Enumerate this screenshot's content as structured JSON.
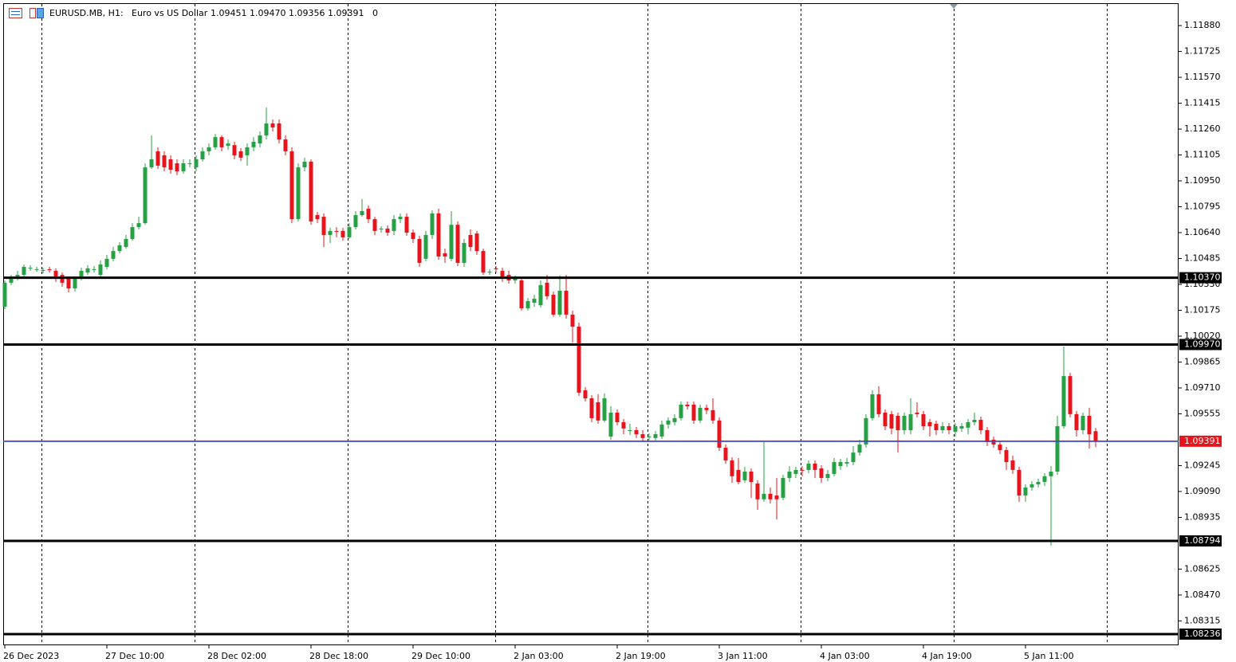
{
  "header": {
    "symbol": "EURUSD.MB, H1:",
    "description": "Euro vs US Dollar",
    "quote": "1.09451 1.09470 1.09356 1.09391",
    "volume": "0"
  },
  "chart_data": {
    "type": "candlestick",
    "up_color": "#26a244",
    "down_color": "#e8141c",
    "level_color": "#000000",
    "current_color": "#e8141c",
    "xlim": [
      -0.25,
      184
    ],
    "ylim": [
      1.08169,
      1.12014
    ],
    "xticks": [
      {
        "value": 0,
        "label": "26 Dec 2023"
      },
      {
        "value": 16,
        "label": "27 Dec 10:00"
      },
      {
        "value": 32,
        "label": "28 Dec 02:00"
      },
      {
        "value": 48,
        "label": "28 Dec 18:00"
      },
      {
        "value": 64,
        "label": "29 Dec 10:00"
      },
      {
        "value": 80,
        "label": "2 Jan 03:00"
      },
      {
        "value": 96,
        "label": "2 Jan 19:00"
      },
      {
        "value": 112,
        "label": "3 Jan 11:00"
      },
      {
        "value": 128,
        "label": "4 Jan 03:00"
      },
      {
        "value": 144,
        "label": "4 Jan 19:00"
      },
      {
        "value": 160,
        "label": "5 Jan 11:00"
      }
    ],
    "yticks": [
      {
        "value": 1.1188,
        "label": "1.11880"
      },
      1.11725,
      {
        "value": 1.1157,
        "label": "1.11570"
      },
      1.11415,
      {
        "value": 1.1126,
        "label": "1.11260"
      },
      1.11105,
      {
        "value": 1.1095,
        "label": "1.10950"
      },
      1.10795,
      {
        "value": 1.1064,
        "label": "1.10640"
      },
      1.10485,
      {
        "value": 1.1033,
        "label": "1.10330"
      },
      1.10175,
      {
        "value": 1.1002,
        "label": "1.10020"
      },
      1.09865,
      {
        "value": 1.0971,
        "label": "1.09710"
      },
      1.09555,
      1.09245,
      {
        "value": 1.0909,
        "label": "1.09090"
      },
      1.08935,
      1.08625,
      {
        "value": 1.0847,
        "label": "1.08470"
      },
      1.08315
    ],
    "levels": [
      {
        "value": 1.1037,
        "label": "1.10370"
      },
      {
        "value": 1.0997,
        "label": "1.09970"
      },
      {
        "value": 1.08794,
        "label": "1.08794"
      },
      {
        "value": 1.08236,
        "label": "1.08236"
      }
    ],
    "candles": [
      [
        1.10196,
        1.10354,
        1.10182,
        1.1034
      ],
      [
        1.1034,
        1.10387,
        1.10326,
        1.10364
      ],
      [
        1.10364,
        1.10411,
        1.10354,
        1.10387
      ],
      [
        1.10387,
        1.10449,
        1.10373,
        1.10435
      ],
      [
        1.10426,
        1.10445,
        1.10411,
        1.1043
      ],
      [
        1.10421,
        1.10435,
        1.10406,
        1.10421
      ],
      [
        1.10411,
        1.1043,
        1.10397,
        1.10416
      ],
      [
        1.10421,
        1.10435,
        1.10401,
        1.10416
      ],
      [
        1.10411,
        1.10426,
        1.10345,
        1.10364
      ],
      [
        1.10387,
        1.10401,
        1.10316,
        1.1034
      ],
      [
        1.10364,
        1.10378,
        1.10282,
        1.10306
      ],
      [
        1.10306,
        1.10378,
        1.10287,
        1.10364
      ],
      [
        1.10364,
        1.1043,
        1.10354,
        1.10411
      ],
      [
        1.10401,
        1.10445,
        1.10387,
        1.10426
      ],
      [
        1.10421,
        1.1044,
        1.10401,
        1.10421
      ],
      [
        1.10387,
        1.10473,
        1.10373,
        1.10449
      ],
      [
        1.10435,
        1.10507,
        1.10421,
        1.10483
      ],
      [
        1.10483,
        1.10554,
        1.10469,
        1.1053
      ],
      [
        1.1053,
        1.10583,
        1.10516,
        1.10564
      ],
      [
        1.10554,
        1.10626,
        1.10544,
        1.10602
      ],
      [
        1.10602,
        1.10697,
        1.10592,
        1.10673
      ],
      [
        1.10673,
        1.10735,
        1.10659,
        1.10697
      ],
      [
        1.10697,
        1.11055,
        1.10687,
        1.11031
      ],
      [
        1.11031,
        1.11222,
        1.11021,
        1.11079
      ],
      [
        1.11127,
        1.11151,
        1.11021,
        1.11041
      ],
      [
        1.11103,
        1.11127,
        1.11007,
        1.11031
      ],
      [
        1.11079,
        1.11103,
        1.10993,
        1.11017
      ],
      [
        1.11055,
        1.11079,
        1.10984,
        1.11007
      ],
      [
        1.11007,
        1.11079,
        1.10993,
        1.11055
      ],
      [
        1.11055,
        1.11079,
        1.11031,
        1.11055
      ],
      [
        1.11031,
        1.11103,
        1.11007,
        1.11079
      ],
      [
        1.11079,
        1.11151,
        1.11065,
        1.11127
      ],
      [
        1.11127,
        1.11174,
        1.11103,
        1.11151
      ],
      [
        1.11151,
        1.11231,
        1.11136,
        1.11212
      ],
      [
        1.11212,
        1.11222,
        1.11127,
        1.11151
      ],
      [
        1.1116,
        1.11198,
        1.11136,
        1.11174
      ],
      [
        1.11164,
        1.11184,
        1.11079,
        1.11103
      ],
      [
        1.11127,
        1.11146,
        1.11069,
        1.11089
      ],
      [
        1.11103,
        1.11174,
        1.11041,
        1.11151
      ],
      [
        1.11151,
        1.11212,
        1.11127,
        1.11184
      ],
      [
        1.11174,
        1.11246,
        1.11151,
        1.11222
      ],
      [
        1.11222,
        1.11389,
        1.11198,
        1.11294
      ],
      [
        1.11294,
        1.11318,
        1.11246,
        1.1127
      ],
      [
        1.11294,
        1.11318,
        1.11174,
        1.11198
      ],
      [
        1.11198,
        1.11222,
        1.11103,
        1.11127
      ],
      [
        1.11127,
        1.11151,
        1.10697,
        1.10721
      ],
      [
        1.10721,
        1.11055,
        1.10707,
        1.11031
      ],
      [
        1.11031,
        1.11089,
        1.11007,
        1.11065
      ],
      [
        1.11065,
        1.11079,
        1.10687,
        1.10707
      ],
      [
        1.10745,
        1.10764,
        1.10697,
        1.10721
      ],
      [
        1.10735,
        1.10755,
        1.10554,
        1.10626
      ],
      [
        1.10626,
        1.10669,
        1.10578,
        1.1065
      ],
      [
        1.1065,
        1.10673,
        1.10612,
        1.10645
      ],
      [
        1.1065,
        1.10669,
        1.10592,
        1.10612
      ],
      [
        1.10612,
        1.10697,
        1.10602,
        1.10673
      ],
      [
        1.10673,
        1.10769,
        1.10659,
        1.10745
      ],
      [
        1.10745,
        1.10841,
        1.10735,
        1.10769
      ],
      [
        1.10783,
        1.10803,
        1.10697,
        1.10721
      ],
      [
        1.10721,
        1.10735,
        1.10626,
        1.1065
      ],
      [
        1.10659,
        1.10678,
        1.1064,
        1.10664
      ],
      [
        1.10664,
        1.10683,
        1.10621,
        1.1064
      ],
      [
        1.1065,
        1.10745,
        1.10626,
        1.10721
      ],
      [
        1.10721,
        1.10755,
        1.10697,
        1.10735
      ],
      [
        1.10735,
        1.10755,
        1.10621,
        1.1064
      ],
      [
        1.1064,
        1.10659,
        1.10578,
        1.10602
      ],
      [
        1.10602,
        1.10621,
        1.10435,
        1.10459
      ],
      [
        1.10483,
        1.1065,
        1.10469,
        1.10626
      ],
      [
        1.10626,
        1.10774,
        1.10602,
        1.10755
      ],
      [
        1.10755,
        1.10783,
        1.10478,
        1.10497
      ],
      [
        1.10516,
        1.10544,
        1.10459,
        1.10497
      ],
      [
        1.10483,
        1.10769,
        1.10469,
        1.10687
      ],
      [
        1.10687,
        1.10707,
        1.1044,
        1.10459
      ],
      [
        1.10459,
        1.10602,
        1.10435,
        1.10578
      ],
      [
        1.10626,
        1.10659,
        1.1053,
        1.10554
      ],
      [
        1.10635,
        1.1065,
        1.10507,
        1.1053
      ],
      [
        1.1053,
        1.10544,
        1.10387,
        1.10401
      ],
      [
        1.10401,
        1.10421,
        1.10387,
        1.10406
      ],
      [
        1.10426,
        1.1044,
        1.10401,
        1.10421
      ],
      [
        1.10411,
        1.1043,
        1.10345,
        1.10364
      ],
      [
        1.10387,
        1.10411,
        1.10335,
        1.10354
      ],
      [
        1.10354,
        1.10383,
        1.10335,
        1.10364
      ],
      [
        1.10354,
        1.10373,
        1.10173,
        1.10187
      ],
      [
        1.10187,
        1.10249,
        1.10173,
        1.1023
      ],
      [
        1.1022,
        1.10268,
        1.10196,
        1.10244
      ],
      [
        1.10206,
        1.10354,
        1.10191,
        1.10326
      ],
      [
        1.1034,
        1.10387,
        1.10239,
        1.10259
      ],
      [
        1.10268,
        1.10287,
        1.10135,
        1.10149
      ],
      [
        1.10149,
        1.10383,
        1.10135,
        1.10292
      ],
      [
        1.10292,
        1.10387,
        1.10125,
        1.10149
      ],
      [
        1.10149,
        1.10173,
        1.09982,
        1.10077
      ],
      [
        1.10077,
        1.10101,
        1.09663,
        1.09682
      ],
      [
        1.09696,
        1.09715,
        1.09629,
        1.09648
      ],
      [
        1.09648,
        1.09667,
        1.09505,
        1.09529
      ],
      [
        1.09624,
        1.09672,
        1.09495,
        1.09515
      ],
      [
        1.09515,
        1.09677,
        1.09505,
        1.09648
      ],
      [
        1.09419,
        1.096,
        1.094,
        1.09562
      ],
      [
        1.09562,
        1.09581,
        1.09486,
        1.09505
      ],
      [
        1.09505,
        1.09524,
        1.09433,
        1.09467
      ],
      [
        1.09457,
        1.09495,
        1.09428,
        1.09457
      ],
      [
        1.09457,
        1.09476,
        1.0941,
        1.09433
      ],
      [
        1.09433,
        1.09457,
        1.09386,
        1.0941
      ],
      [
        1.09419,
        1.09438,
        1.09396,
        1.09419
      ],
      [
        1.0941,
        1.09452,
        1.09396,
        1.09433
      ],
      [
        1.09419,
        1.09515,
        1.09405,
        1.09491
      ],
      [
        1.09491,
        1.09534,
        1.09467,
        1.09515
      ],
      [
        1.09505,
        1.09553,
        1.09486,
        1.09529
      ],
      [
        1.09529,
        1.09629,
        1.09515,
        1.0961
      ],
      [
        1.0961,
        1.09629,
        1.09581,
        1.096
      ],
      [
        1.0961,
        1.09629,
        1.09495,
        1.09515
      ],
      [
        1.09515,
        1.0961,
        1.095,
        1.09591
      ],
      [
        1.09591,
        1.0961,
        1.09553,
        1.09577
      ],
      [
        1.09577,
        1.09648,
        1.09495,
        1.09515
      ],
      [
        1.09515,
        1.09534,
        1.09333,
        1.09352
      ],
      [
        1.09352,
        1.09371,
        1.09256,
        1.09276
      ],
      [
        1.09276,
        1.09295,
        1.09142,
        1.09181
      ],
      [
        1.09219,
        1.0929,
        1.09133,
        1.09147
      ],
      [
        1.09157,
        1.09238,
        1.09142,
        1.09209
      ],
      [
        1.09209,
        1.09228,
        1.09052,
        1.09147
      ],
      [
        1.09138,
        1.09157,
        1.0898,
        1.09043
      ],
      [
        1.09043,
        1.09386,
        1.09028,
        1.09076
      ],
      [
        1.09076,
        1.09114,
        1.09018,
        1.09043
      ],
      [
        1.09066,
        1.09171,
        1.08922,
        1.09043
      ],
      [
        1.09052,
        1.0919,
        1.09038,
        1.09171
      ],
      [
        1.09171,
        1.09242,
        1.09147,
        1.09209
      ],
      [
        1.09195,
        1.09238,
        1.09171,
        1.09219
      ],
      [
        1.09219,
        1.09242,
        1.09181,
        1.09214
      ],
      [
        1.09219,
        1.09276,
        1.092,
        1.09257
      ],
      [
        1.09257,
        1.09276,
        1.09171,
        1.09219
      ],
      [
        1.09228,
        1.09247,
        1.09142,
        1.09171
      ],
      [
        1.09171,
        1.09219,
        1.09152,
        1.09195
      ],
      [
        1.09195,
        1.0929,
        1.09181,
        1.09266
      ],
      [
        1.09242,
        1.09285,
        1.09219,
        1.09266
      ],
      [
        1.09257,
        1.0929,
        1.09238,
        1.09266
      ],
      [
        1.09266,
        1.09362,
        1.09247,
        1.09323
      ],
      [
        1.09323,
        1.094,
        1.09304,
        1.09371
      ],
      [
        1.09371,
        1.09553,
        1.09352,
        1.09529
      ],
      [
        1.09529,
        1.09696,
        1.09515,
        1.09672
      ],
      [
        1.09672,
        1.0972,
        1.09534,
        1.09553
      ],
      [
        1.09562,
        1.09581,
        1.09457,
        1.09481
      ],
      [
        1.09553,
        1.09572,
        1.09433,
        1.09467
      ],
      [
        1.09543,
        1.09562,
        1.09323,
        1.09457
      ],
      [
        1.09457,
        1.09562,
        1.09433,
        1.09543
      ],
      [
        1.09457,
        1.09648,
        1.09433,
        1.09553
      ],
      [
        1.09562,
        1.09624,
        1.09534,
        1.09553
      ],
      [
        1.09553,
        1.09572,
        1.09457,
        1.09481
      ],
      [
        1.09505,
        1.09524,
        1.09419,
        1.09481
      ],
      [
        1.09495,
        1.09515,
        1.09428,
        1.09457
      ],
      [
        1.09457,
        1.09505,
        1.09438,
        1.09481
      ],
      [
        1.09481,
        1.095,
        1.09433,
        1.09457
      ],
      [
        1.09447,
        1.095,
        1.09419,
        1.09481
      ],
      [
        1.09467,
        1.095,
        1.09447,
        1.09481
      ],
      [
        1.09472,
        1.09524,
        1.09433,
        1.09505
      ],
      [
        1.09505,
        1.09562,
        1.09486,
        1.09519
      ],
      [
        1.09519,
        1.09538,
        1.09433,
        1.09457
      ],
      [
        1.09457,
        1.09476,
        1.09362,
        1.09386
      ],
      [
        1.094,
        1.09419,
        1.09352,
        1.09371
      ],
      [
        1.09371,
        1.09391,
        1.09314,
        1.09338
      ],
      [
        1.09338,
        1.09357,
        1.09219,
        1.09266
      ],
      [
        1.09276,
        1.09304,
        1.09195,
        1.09219
      ],
      [
        1.09219,
        1.09238,
        1.09028,
        1.09066
      ],
      [
        1.09066,
        1.09133,
        1.09028,
        1.09114
      ],
      [
        1.09114,
        1.09152,
        1.09095,
        1.09133
      ],
      [
        1.09133,
        1.09166,
        1.09114,
        1.09147
      ],
      [
        1.09147,
        1.092,
        1.09123,
        1.09181
      ],
      [
        1.09181,
        1.09242,
        1.08765,
        1.09209
      ],
      [
        1.09209,
        1.09543,
        1.0919,
        1.09481
      ],
      [
        1.09481,
        1.09958,
        1.09467,
        1.09781
      ],
      [
        1.09781,
        1.09801,
        1.09534,
        1.09553
      ],
      [
        1.09553,
        1.09572,
        1.09419,
        1.09457
      ],
      [
        1.09457,
        1.09562,
        1.09433,
        1.09543
      ],
      [
        1.09543,
        1.09591,
        1.09347,
        1.09433
      ],
      [
        1.09451,
        1.0947,
        1.09356,
        1.09391
      ]
    ]
  }
}
